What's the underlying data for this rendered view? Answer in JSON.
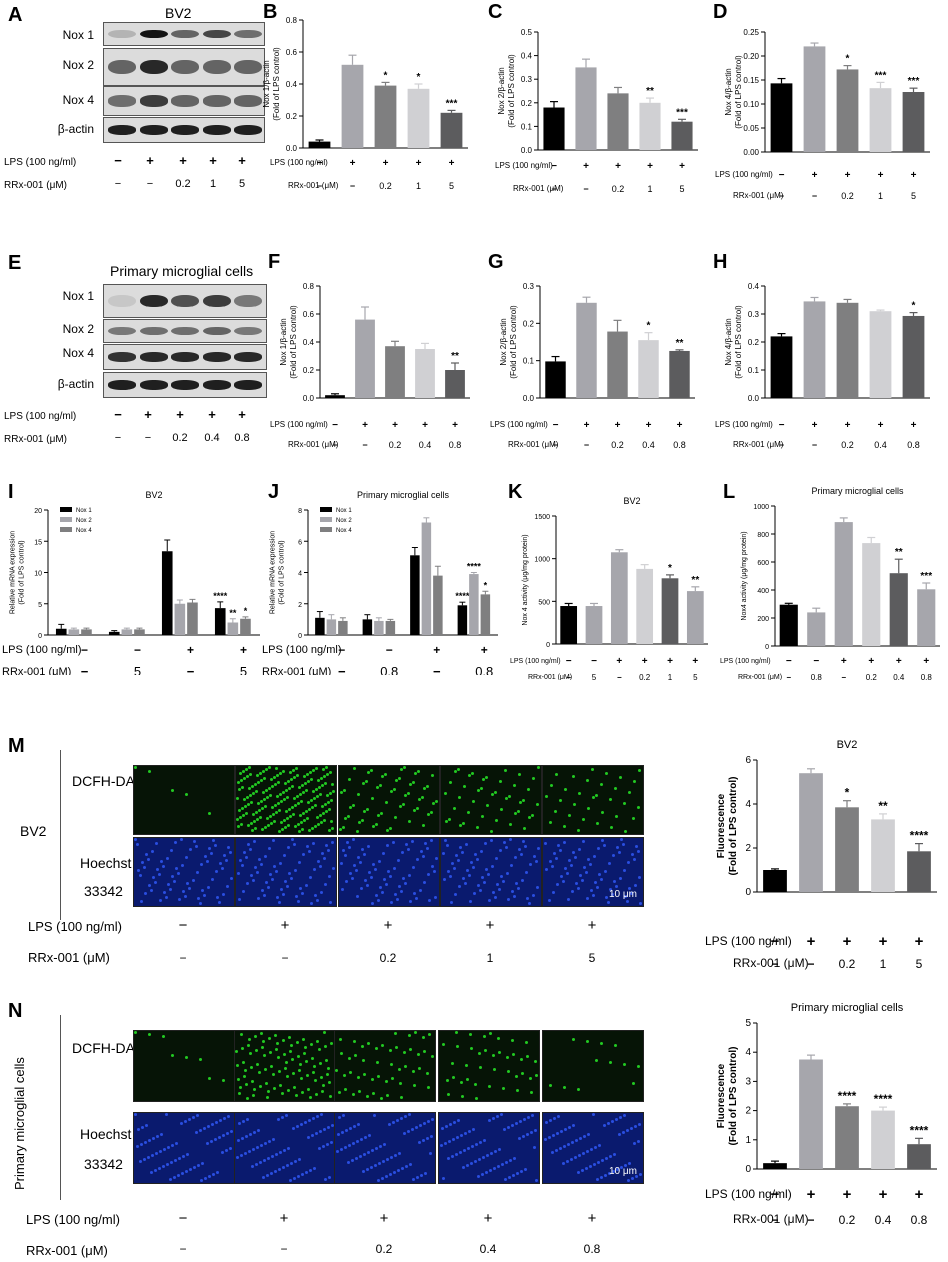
{
  "panels": {
    "A": {
      "label": "A",
      "title": "BV2",
      "bands": [
        "Nox 1",
        "Nox 2",
        "Nox 4",
        "β-actin"
      ],
      "lps_label": "LPS (100 ng/ml)",
      "rrx_label": "RRx-001 (μM)",
      "lps": [
        "−",
        "+",
        "+",
        "+",
        "+"
      ],
      "rrx": [
        "−",
        "−",
        "0.2",
        "1",
        "5"
      ]
    },
    "E": {
      "label": "E",
      "title": "Primary microglial cells",
      "bands": [
        "Nox 1",
        "Nox 2",
        "Nox 4",
        "β-actin"
      ],
      "lps_label": "LPS (100 ng/ml)",
      "rrx_label": "RRx-001 (μM)",
      "lps": [
        "−",
        "+",
        "+",
        "+",
        "+"
      ],
      "rrx": [
        "−",
        "−",
        "0.2",
        "0.4",
        "0.8"
      ]
    },
    "M": {
      "label": "M",
      "row_group": "BV2",
      "row1": "DCFH-DA",
      "row2a": "Hoechst",
      "row2b": "33342",
      "scale": "10 μm",
      "lps_label": "LPS (100 ng/ml)",
      "rrx_label": "RRx-001 (μM)",
      "lps": [
        "−",
        "+",
        "+",
        "+",
        "+"
      ],
      "rrx": [
        "−",
        "−",
        "0.2",
        "1",
        "5"
      ]
    },
    "N": {
      "label": "N",
      "row_group": "Primary microglial cells",
      "row1": "DCFH-DA",
      "row2a": "Hoechst",
      "row2b": "33342",
      "scale": "10 μm",
      "lps_label": "LPS (100 ng/ml)",
      "rrx_label": "RRx-001 (μM)",
      "lps": [
        "−",
        "+",
        "+",
        "+",
        "+"
      ],
      "rrx": [
        "−",
        "−",
        "0.2",
        "0.4",
        "0.8"
      ]
    }
  },
  "colors": {
    "black": "#000000",
    "grey1": "#a6a6ac",
    "grey2": "#7f7f80",
    "grey3": "#d0d0d3",
    "grey4": "#5c5c5e",
    "green": "#22c922",
    "blue": "#2a4ee0"
  },
  "chart_data": [
    {
      "id": "B",
      "label": "B",
      "type": "bar",
      "ylabel": "Nox 1/β-actin\n(Fold of LPS control)",
      "ylim": [
        0,
        0.8
      ],
      "ticks": [
        "0.0",
        "0.2",
        "0.4",
        "0.6",
        "0.8"
      ],
      "values": [
        0.04,
        0.52,
        0.39,
        0.37,
        0.22
      ],
      "errors": [
        0.01,
        0.06,
        0.02,
        0.03,
        0.015
      ],
      "sig": [
        "",
        "",
        "*",
        "*",
        "***"
      ],
      "lps_label": "LPS (100 ng/ml)",
      "rrx_label": "RRx-001 (μM)",
      "lps": [
        "−",
        "+",
        "+",
        "+",
        "+"
      ],
      "rrx": [
        "−",
        "−",
        "0.2",
        "1",
        "5"
      ]
    },
    {
      "id": "C",
      "label": "C",
      "type": "bar",
      "ylabel": "Nox 2/β-actin\n(Fold of LPS control)",
      "ylim": [
        0,
        0.5
      ],
      "ticks": [
        "0.0",
        "0.1",
        "0.2",
        "0.3",
        "0.4",
        "0.5"
      ],
      "values": [
        0.18,
        0.35,
        0.24,
        0.2,
        0.12
      ],
      "errors": [
        0.025,
        0.035,
        0.025,
        0.02,
        0.01
      ],
      "sig": [
        "",
        "",
        "",
        "**",
        "***"
      ],
      "lps_label": "LPS (100 ng/ml)",
      "rrx_label": "RRx-001 (μM)",
      "lps": [
        "−",
        "+",
        "+",
        "+",
        "+"
      ],
      "rrx": [
        "−",
        "−",
        "0.2",
        "1",
        "5"
      ]
    },
    {
      "id": "D",
      "label": "D",
      "type": "bar",
      "ylabel": "Nox 4/β-actin\n(Fold of LPS control)",
      "ylim": [
        0,
        0.25
      ],
      "ticks": [
        "0.00",
        "0.05",
        "0.10",
        "0.15",
        "0.20",
        "0.25"
      ],
      "values": [
        0.143,
        0.22,
        0.172,
        0.133,
        0.125
      ],
      "errors": [
        0.01,
        0.007,
        0.008,
        0.012,
        0.008
      ],
      "sig": [
        "",
        "",
        "*",
        "***",
        "***"
      ],
      "lps_label": "LPS (100 ng/ml)",
      "rrx_label": "RRx-001 (μM)",
      "lps": [
        "−",
        "+",
        "+",
        "+",
        "+"
      ],
      "rrx": [
        "−",
        "−",
        "0.2",
        "1",
        "5"
      ]
    },
    {
      "id": "F",
      "label": "F",
      "type": "bar",
      "ylabel": "Nox 1/β-actin\n(Fold of LPS control)",
      "ylim": [
        0,
        0.8
      ],
      "ticks": [
        "0.0",
        "0.2",
        "0.4",
        "0.6",
        "0.8"
      ],
      "values": [
        0.02,
        0.56,
        0.37,
        0.35,
        0.2
      ],
      "errors": [
        0.01,
        0.09,
        0.035,
        0.04,
        0.05
      ],
      "sig": [
        "",
        "",
        "",
        "",
        "**"
      ],
      "lps_label": "LPS (100 ng/ml)",
      "rrx_label": "RRx-001 (μM)",
      "lps": [
        "−",
        "+",
        "+",
        "+",
        "+"
      ],
      "rrx": [
        "−",
        "−",
        "0.2",
        "0.4",
        "0.8"
      ]
    },
    {
      "id": "G",
      "label": "G",
      "type": "bar",
      "ylabel": "Nox 2/β-actin\n(Fold of LPS control)",
      "ylim": [
        0,
        0.3
      ],
      "ticks": [
        "0.0",
        "0.1",
        "0.2",
        "0.3"
      ],
      "values": [
        0.098,
        0.255,
        0.178,
        0.155,
        0.126
      ],
      "errors": [
        0.013,
        0.015,
        0.03,
        0.02,
        0.003
      ],
      "sig": [
        "",
        "",
        "",
        "*",
        "**"
      ],
      "lps_label": "LPS (100 ng/ml)",
      "rrx_label": "RRx-001 (μM)",
      "lps": [
        "−",
        "+",
        "+",
        "+",
        "+"
      ],
      "rrx": [
        "−",
        "−",
        "0.2",
        "0.4",
        "0.8"
      ]
    },
    {
      "id": "H",
      "label": "H",
      "type": "bar",
      "ylabel": "Nox 4/β-actin\n(Fold of LPS control)",
      "ylim": [
        0,
        0.4
      ],
      "ticks": [
        "0.0",
        "0.1",
        "0.2",
        "0.3",
        "0.4"
      ],
      "values": [
        0.22,
        0.345,
        0.34,
        0.31,
        0.293
      ],
      "errors": [
        0.01,
        0.014,
        0.012,
        0.004,
        0.012
      ],
      "sig": [
        "",
        "",
        "",
        "",
        "*"
      ],
      "lps_label": "LPS (100 ng/ml)",
      "rrx_label": "RRx-001 (μM)",
      "lps": [
        "−",
        "+",
        "+",
        "+",
        "+"
      ],
      "rrx": [
        "−",
        "−",
        "0.2",
        "0.4",
        "0.8"
      ]
    },
    {
      "id": "I",
      "label": "I",
      "type": "bar",
      "title": "BV2",
      "ylabel": "Relative mRNA expression\n(Fold of LPS control)",
      "ylim": [
        0,
        20
      ],
      "ticks": [
        "0",
        "5",
        "10",
        "15",
        "20"
      ],
      "legend": [
        "Nox 1",
        "Nox 2",
        "Nox 4"
      ],
      "groups": 4,
      "series": [
        {
          "name": "Nox 1",
          "values": [
            1.0,
            0.5,
            13.4,
            4.3
          ],
          "errors": [
            0.7,
            0.2,
            1.8,
            1.0
          ]
        },
        {
          "name": "Nox 2",
          "values": [
            0.9,
            0.9,
            5.0,
            2.0
          ],
          "errors": [
            0.2,
            0.2,
            0.6,
            0.6
          ]
        },
        {
          "name": "Nox 4",
          "values": [
            0.9,
            0.9,
            5.2,
            2.6
          ],
          "errors": [
            0.2,
            0.2,
            0.5,
            0.3
          ]
        }
      ],
      "sig": [
        [
          "",
          "",
          ""
        ],
        [
          "",
          "",
          ""
        ],
        [
          "",
          "",
          ""
        ],
        [
          "****",
          "**",
          "*"
        ]
      ],
      "lps_label": "LPS (100 ng/ml)",
      "rrx_label": "RRx-001 (μM)",
      "lps": [
        "−",
        "−",
        "+",
        "+"
      ],
      "rrx": [
        "−",
        "5",
        "−",
        "5"
      ]
    },
    {
      "id": "J",
      "label": "J",
      "type": "bar",
      "title": "Primary microglial cells",
      "ylabel": "Relative mRNA expression\n(Fold of LPS control)",
      "ylim": [
        0,
        8
      ],
      "ticks": [
        "0",
        "2",
        "4",
        "6",
        "8"
      ],
      "legend": [
        "Nox 1",
        "Nox 2",
        "Nox 4"
      ],
      "groups": 4,
      "series": [
        {
          "name": "Nox 1",
          "values": [
            1.1,
            1.0,
            5.1,
            1.9
          ],
          "errors": [
            0.4,
            0.3,
            0.5,
            0.2
          ]
        },
        {
          "name": "Nox 2",
          "values": [
            1.0,
            0.9,
            7.2,
            3.9
          ],
          "errors": [
            0.3,
            0.2,
            0.3,
            0.1
          ]
        },
        {
          "name": "Nox 4",
          "values": [
            0.9,
            0.9,
            3.8,
            2.6
          ],
          "errors": [
            0.2,
            0.1,
            0.6,
            0.2
          ]
        }
      ],
      "sig": [
        [
          "",
          "",
          ""
        ],
        [
          "",
          "",
          ""
        ],
        [
          "",
          "",
          ""
        ],
        [
          "****",
          "****",
          "*"
        ]
      ],
      "lps_label": "LPS (100 ng/ml)",
      "rrx_label": "RRx-001 (μM)",
      "lps": [
        "−",
        "−",
        "+",
        "+"
      ],
      "rrx": [
        "−",
        "0.8",
        "−",
        "0.8"
      ]
    },
    {
      "id": "K",
      "label": "K",
      "type": "bar",
      "title": "BV2",
      "ylabel": "Nox 4 activity (μg/mg protein)",
      "ylim": [
        0,
        1500
      ],
      "ticks": [
        "0",
        "500",
        "1000",
        "1500"
      ],
      "values": [
        445,
        445,
        1075,
        880,
        770,
        620
      ],
      "errors": [
        30,
        30,
        30,
        50,
        40,
        50
      ],
      "sig": [
        "",
        "",
        "",
        "",
        "*",
        "**"
      ],
      "lps_label": "LPS (100 ng/ml)",
      "rrx_label": "RRx-001 (μM)",
      "lps": [
        "−",
        "−",
        "+",
        "+",
        "+",
        "+"
      ],
      "rrx": [
        "−",
        "5",
        "−",
        "0.2",
        "1",
        "5"
      ]
    },
    {
      "id": "L",
      "label": "L",
      "type": "bar",
      "title": "Primary microglial cells",
      "ylabel": "Nox4 activity (μg/mg protein)",
      "ylim": [
        0,
        1000
      ],
      "ticks": [
        "0",
        "200",
        "400",
        "600",
        "800",
        "1000"
      ],
      "values": [
        295,
        240,
        885,
        735,
        520,
        405
      ],
      "errors": [
        10,
        30,
        30,
        40,
        100,
        45
      ],
      "sig": [
        "",
        "",
        "",
        "",
        "**",
        "***"
      ],
      "lps_label": "LPS (100 ng/ml)",
      "rrx_label": "RRx-001 (μM)",
      "lps": [
        "−",
        "−",
        "+",
        "+",
        "+",
        "+"
      ],
      "rrx": [
        "−",
        "0.8",
        "−",
        "0.2",
        "0.4",
        "0.8"
      ]
    },
    {
      "id": "M2",
      "label": "",
      "type": "bar",
      "title": "BV2",
      "ylabel": "Fluorescence\n(Fold of LPS control)",
      "ylim": [
        0,
        6
      ],
      "ticks": [
        "0",
        "2",
        "4",
        "6"
      ],
      "values": [
        1.0,
        5.4,
        3.85,
        3.3,
        1.85
      ],
      "errors": [
        0.05,
        0.2,
        0.3,
        0.25,
        0.35
      ],
      "sig": [
        "",
        "",
        "*",
        "**",
        "****"
      ],
      "lps_label": "LPS (100 ng/ml)",
      "rrx_label": "RRx-001 (μM)",
      "lps": [
        "−",
        "+",
        "+",
        "+",
        "+"
      ],
      "rrx": [
        "−",
        "−",
        "0.2",
        "1",
        "5"
      ]
    },
    {
      "id": "N2",
      "label": "",
      "type": "bar",
      "title": "Primary microglial cells",
      "ylabel": "Fluorescence\n(Fold of LPS control)",
      "ylim": [
        0,
        5
      ],
      "ticks": [
        "0",
        "1",
        "2",
        "3",
        "4",
        "5"
      ],
      "values": [
        0.2,
        3.75,
        2.15,
        2.0,
        0.85
      ],
      "errors": [
        0.07,
        0.15,
        0.08,
        0.12,
        0.2
      ],
      "sig": [
        "",
        "",
        "****",
        "****",
        "****"
      ],
      "lps_label": "LPS (100 ng/ml)",
      "rrx_label": "RRx-001 (μM)",
      "lps": [
        "−",
        "+",
        "+",
        "+",
        "+"
      ],
      "rrx": [
        "−",
        "−",
        "0.2",
        "0.4",
        "0.8"
      ]
    }
  ]
}
